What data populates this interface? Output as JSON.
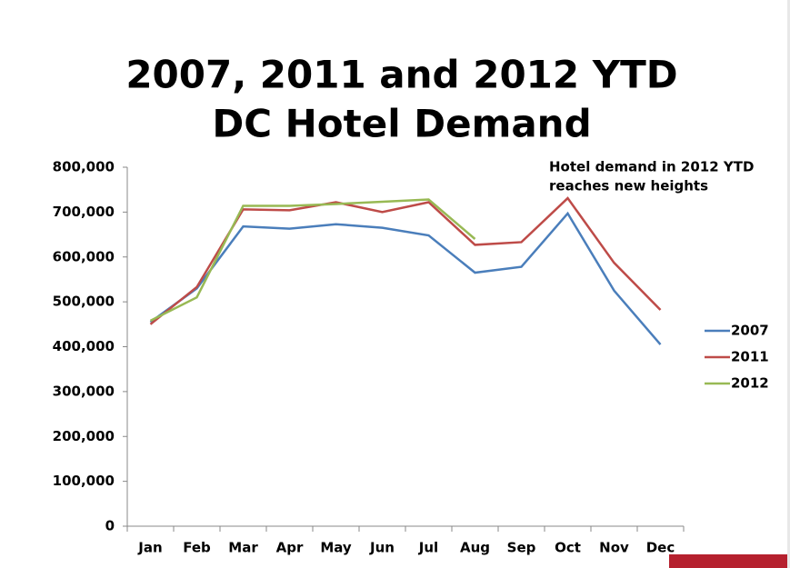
{
  "chart_data": {
    "type": "line",
    "title": [
      "2007, 2011 and 2012 YTD",
      "DC Hotel Demand"
    ],
    "annotation": [
      "Hotel demand in 2012 YTD",
      "reaches new heights"
    ],
    "categories": [
      "Jan",
      "Feb",
      "Mar",
      "Apr",
      "May",
      "Jun",
      "Jul",
      "Aug",
      "Sep",
      "Oct",
      "Nov",
      "Dec"
    ],
    "series": [
      {
        "name": "2007",
        "color": "#4a7ebb",
        "values": [
          455000,
          530000,
          668000,
          663000,
          673000,
          665000,
          648000,
          565000,
          578000,
          697000,
          525000,
          405000
        ]
      },
      {
        "name": "2011",
        "color": "#be4b48",
        "values": [
          450000,
          533000,
          706000,
          704000,
          722000,
          700000,
          722000,
          627000,
          633000,
          731000,
          587000,
          482000
        ]
      },
      {
        "name": "2012",
        "color": "#98b954",
        "values": [
          458000,
          510000,
          714000,
          714000,
          718000,
          723000,
          728000,
          640000,
          null,
          null,
          null,
          null
        ]
      }
    ],
    "ylim": [
      0,
      800000
    ],
    "yticks": [
      0,
      {
        "value": 100000,
        "label": "100,000"
      },
      {
        "value": 200000,
        "label": "200,000"
      },
      {
        "value": 300000,
        "label": "300,000"
      },
      {
        "value": 400000,
        "label": "400,000"
      },
      {
        "value": 500000,
        "label": "500,000"
      },
      {
        "value": 600000,
        "label": "600,000"
      },
      {
        "value": 700000,
        "label": "700,000"
      },
      {
        "value": 800000,
        "label": "800,000"
      }
    ],
    "legend": "right"
  }
}
